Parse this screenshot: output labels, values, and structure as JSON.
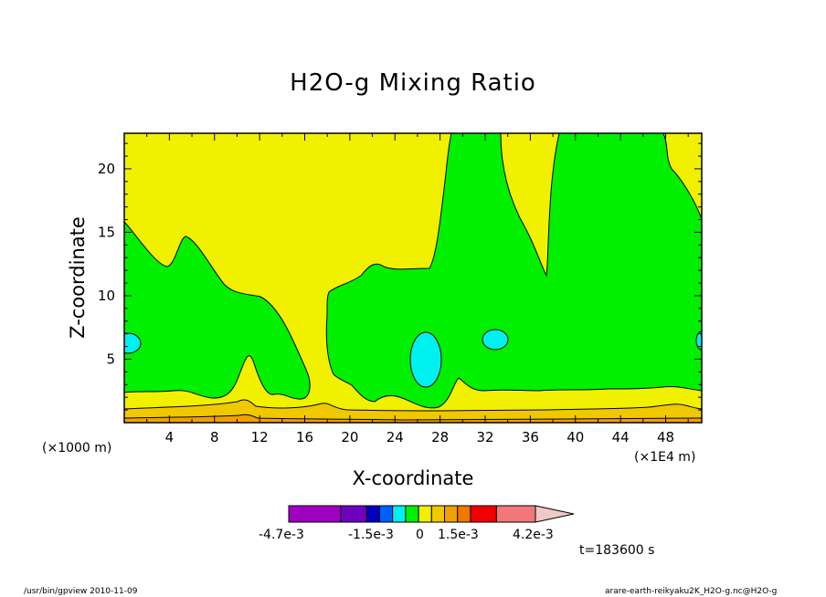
{
  "title": "H2O-g Mixing Ratio",
  "xlabel": "X-coordinate",
  "ylabel": "Z-coordinate",
  "x_unit_label": "(×1000 m)",
  "y_unit_label": "(×1E4 m)",
  "time_label": "t=183600 s",
  "footer_left": "/usr/bin/gpview  2010-11-09",
  "footer_right": "arare-earth-reikyaku2K_H2O-g.nc@H2O-g",
  "colorbar": {
    "colors": [
      "#a000c0",
      "#7000c0",
      "#0000c0",
      "#0060ff",
      "#00f0f0",
      "#00f000",
      "#f0f000",
      "#f0c800",
      "#f0a000",
      "#f07800",
      "#f00000",
      "#f07878",
      "#f0c8c8"
    ],
    "labels": [
      "-4.7e-3",
      "-1.5e-3",
      "0",
      "1.5e-3",
      "4.2e-3"
    ]
  },
  "chart_data": {
    "type": "heatmap",
    "title": "H2O-g Mixing Ratio",
    "xlabel": "X-coordinate",
    "ylabel": "Z-coordinate",
    "x_ticks": [
      4,
      8,
      12,
      16,
      20,
      24,
      28,
      32,
      36,
      40,
      44,
      48
    ],
    "y_ticks": [
      5,
      10,
      15,
      20
    ],
    "xlim": [
      0,
      51.2
    ],
    "ylim": [
      0,
      22.8
    ],
    "colorbar_labels": [
      "-4.7e-3",
      "-1.5e-3",
      "0",
      "1.5e-3",
      "4.2e-3"
    ],
    "regions": [
      {
        "level": "0 to 7.5e-4 (yellow)",
        "description": "upper domain and near-surface band"
      },
      {
        "level": "-7.5e-4 to 0 (green)",
        "description": "middle layer and rising columns"
      },
      {
        "level": "-1.5e-3 to -7.5e-4 (cyan)",
        "description": "isolated cells"
      },
      {
        "level": "7.5e-4 to 2.25e-3 (orange)",
        "description": "lowest layer"
      }
    ]
  }
}
